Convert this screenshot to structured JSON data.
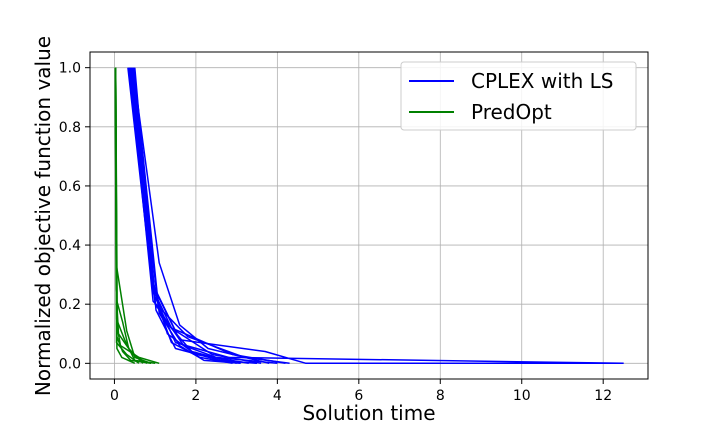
{
  "chart_data": {
    "type": "line",
    "xlabel": "Solution time",
    "ylabel": "Normalized objective function value",
    "xlim": [
      -0.6,
      13.1
    ],
    "ylim": [
      -0.053,
      1.053
    ],
    "xticks": [
      0,
      2,
      4,
      6,
      8,
      10,
      12
    ],
    "yticks": [
      0.0,
      0.2,
      0.4,
      0.6,
      0.8,
      1.0
    ],
    "xtick_labels": [
      "0",
      "2",
      "4",
      "6",
      "8",
      "10",
      "12"
    ],
    "ytick_labels": [
      "0.0",
      "0.2",
      "0.4",
      "0.6",
      "0.8",
      "1.0"
    ],
    "grid": true,
    "legend": {
      "placement": "top-right",
      "entries": [
        {
          "label": "CPLEX with LS",
          "color": "#0000ff"
        },
        {
          "label": "PredOpt",
          "color": "#008000"
        }
      ]
    },
    "series": [
      {
        "name": "CPLEX with LS",
        "color": "#0000ff",
        "runs": [
          [
            [
              0.35,
              1.0
            ],
            [
              0.95,
              0.24
            ],
            [
              1.5,
              0.07
            ],
            [
              2.8,
              0.02
            ],
            [
              12.5,
              0.0
            ]
          ],
          [
            [
              0.38,
              1.0
            ],
            [
              0.92,
              0.27
            ],
            [
              1.6,
              0.08
            ],
            [
              3.7,
              0.04
            ],
            [
              4.7,
              0.0
            ],
            [
              12.5,
              0.0
            ]
          ],
          [
            [
              0.4,
              1.0
            ],
            [
              1.0,
              0.2
            ],
            [
              1.7,
              0.06
            ],
            [
              2.5,
              0.02
            ],
            [
              4.0,
              0.0
            ]
          ],
          [
            [
              0.42,
              1.0
            ],
            [
              1.05,
              0.22
            ],
            [
              1.4,
              0.12
            ],
            [
              2.9,
              0.03
            ],
            [
              4.2,
              0.0
            ]
          ],
          [
            [
              0.45,
              1.0
            ],
            [
              1.1,
              0.34
            ],
            [
              1.6,
              0.13
            ],
            [
              2.3,
              0.05
            ],
            [
              3.8,
              0.0
            ]
          ],
          [
            [
              0.47,
              1.0
            ],
            [
              0.98,
              0.25
            ],
            [
              1.3,
              0.1
            ],
            [
              2.0,
              0.03
            ],
            [
              3.3,
              0.0
            ]
          ],
          [
            [
              0.5,
              1.0
            ],
            [
              1.02,
              0.18
            ],
            [
              1.5,
              0.05
            ],
            [
              2.6,
              0.01
            ],
            [
              3.5,
              0.0
            ]
          ],
          [
            [
              0.33,
              1.0
            ],
            [
              0.9,
              0.3
            ],
            [
              1.2,
              0.15
            ],
            [
              1.9,
              0.04
            ],
            [
              3.0,
              0.0
            ]
          ],
          [
            [
              0.37,
              1.0
            ],
            [
              0.95,
              0.21
            ],
            [
              1.8,
              0.09
            ],
            [
              3.2,
              0.02
            ],
            [
              4.3,
              0.0
            ]
          ],
          [
            [
              0.44,
              1.0
            ],
            [
              1.08,
              0.19
            ],
            [
              1.4,
              0.07
            ],
            [
              2.1,
              0.02
            ],
            [
              2.9,
              0.0
            ]
          ],
          [
            [
              0.41,
              1.0
            ],
            [
              0.97,
              0.26
            ],
            [
              1.5,
              0.11
            ],
            [
              2.4,
              0.03
            ],
            [
              3.6,
              0.0
            ]
          ],
          [
            [
              0.48,
              1.0
            ],
            [
              1.1,
              0.17
            ],
            [
              1.6,
              0.06
            ],
            [
              2.2,
              0.01
            ],
            [
              3.1,
              0.0
            ]
          ]
        ]
      },
      {
        "name": "PredOpt",
        "color": "#008000",
        "runs": [
          [
            [
              0.03,
              1.0
            ],
            [
              0.05,
              0.33
            ],
            [
              0.3,
              0.11
            ],
            [
              0.5,
              0.02
            ],
            [
              0.9,
              0.0
            ]
          ],
          [
            [
              0.03,
              1.0
            ],
            [
              0.06,
              0.21
            ],
            [
              0.2,
              0.14
            ],
            [
              0.35,
              0.05
            ],
            [
              0.7,
              0.0
            ]
          ],
          [
            [
              0.02,
              1.0
            ],
            [
              0.05,
              0.15
            ],
            [
              0.25,
              0.08
            ],
            [
              0.5,
              0.01
            ],
            [
              1.0,
              0.0
            ]
          ],
          [
            [
              0.03,
              1.0
            ],
            [
              0.07,
              0.12
            ],
            [
              0.15,
              0.06
            ],
            [
              0.6,
              0.02
            ],
            [
              1.1,
              0.0
            ]
          ],
          [
            [
              0.02,
              1.0
            ],
            [
              0.04,
              0.25
            ],
            [
              0.1,
              0.1
            ],
            [
              0.45,
              0.03
            ],
            [
              0.8,
              0.0
            ]
          ],
          [
            [
              0.03,
              1.0
            ],
            [
              0.06,
              0.09
            ],
            [
              0.2,
              0.04
            ],
            [
              0.4,
              0.01
            ],
            [
              0.9,
              0.0
            ]
          ],
          [
            [
              0.02,
              1.0
            ],
            [
              0.05,
              0.07
            ],
            [
              0.3,
              0.03
            ],
            [
              0.6,
              0.0
            ]
          ],
          [
            [
              0.03,
              1.0
            ],
            [
              0.06,
              0.05
            ],
            [
              0.18,
              0.02
            ],
            [
              0.5,
              0.0
            ]
          ]
        ]
      }
    ]
  }
}
